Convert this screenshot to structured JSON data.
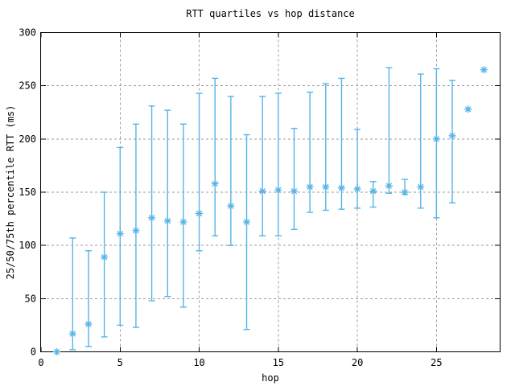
{
  "chart_data": {
    "type": "scatter",
    "title": "RTT quartiles vs hop distance",
    "xlabel": "hop",
    "ylabel": "25/50/75th percentile RTT (ms)",
    "xlim": [
      0,
      29
    ],
    "ylim": [
      0,
      300
    ],
    "xticks": [
      0,
      5,
      10,
      15,
      20,
      25
    ],
    "yticks": [
      0,
      50,
      100,
      150,
      200,
      250,
      300
    ],
    "grid": true,
    "legend_position": "none",
    "marker": "asterisk",
    "series_name": "RTT quartiles (25th/50th/75th percentile) per hop",
    "series_color": "#56b4e9",
    "grid_color": "#9e9e9e",
    "border_color": "#000000",
    "background_color": "#ffffff",
    "points": [
      {
        "hop": 1,
        "median": 0,
        "q25": null,
        "q75": null
      },
      {
        "hop": 2,
        "median": 17,
        "q25": 2,
        "q75": 107
      },
      {
        "hop": 3,
        "median": 26,
        "q25": 5,
        "q75": 95
      },
      {
        "hop": 4,
        "median": 89,
        "q25": 14,
        "q75": 150
      },
      {
        "hop": 5,
        "median": 111,
        "q25": 25,
        "q75": 192
      },
      {
        "hop": 6,
        "median": 114,
        "q25": 23,
        "q75": 214
      },
      {
        "hop": 7,
        "median": 126,
        "q25": 48,
        "q75": 231
      },
      {
        "hop": 8,
        "median": 123,
        "q25": 52,
        "q75": 227
      },
      {
        "hop": 9,
        "median": 122,
        "q25": 42,
        "q75": 214
      },
      {
        "hop": 10,
        "median": 130,
        "q25": 95,
        "q75": 243
      },
      {
        "hop": 11,
        "median": 158,
        "q25": 109,
        "q75": 257
      },
      {
        "hop": 12,
        "median": 137,
        "q25": 100,
        "q75": 240
      },
      {
        "hop": 13,
        "median": 122,
        "q25": 21,
        "q75": 204
      },
      {
        "hop": 14,
        "median": 151,
        "q25": 109,
        "q75": 240
      },
      {
        "hop": 15,
        "median": 152,
        "q25": 109,
        "q75": 243
      },
      {
        "hop": 16,
        "median": 151,
        "q25": 115,
        "q75": 210
      },
      {
        "hop": 17,
        "median": 155,
        "q25": 131,
        "q75": 244
      },
      {
        "hop": 18,
        "median": 155,
        "q25": 133,
        "q75": 252
      },
      {
        "hop": 19,
        "median": 154,
        "q25": 134,
        "q75": 257
      },
      {
        "hop": 20,
        "median": 153,
        "q25": 135,
        "q75": 209
      },
      {
        "hop": 21,
        "median": 151,
        "q25": 136,
        "q75": 160
      },
      {
        "hop": 22,
        "median": 156,
        "q25": 149,
        "q75": 267
      },
      {
        "hop": 23,
        "median": 150,
        "q25": 148,
        "q75": 162
      },
      {
        "hop": 24,
        "median": 155,
        "q25": 135,
        "q75": 261
      },
      {
        "hop": 25,
        "median": 200,
        "q25": 126,
        "q75": 266
      },
      {
        "hop": 26,
        "median": 203,
        "q25": 140,
        "q75": 255
      },
      {
        "hop": 27,
        "median": 228,
        "q25": null,
        "q75": null
      },
      {
        "hop": 28,
        "median": 265,
        "q25": null,
        "q75": null
      }
    ]
  }
}
